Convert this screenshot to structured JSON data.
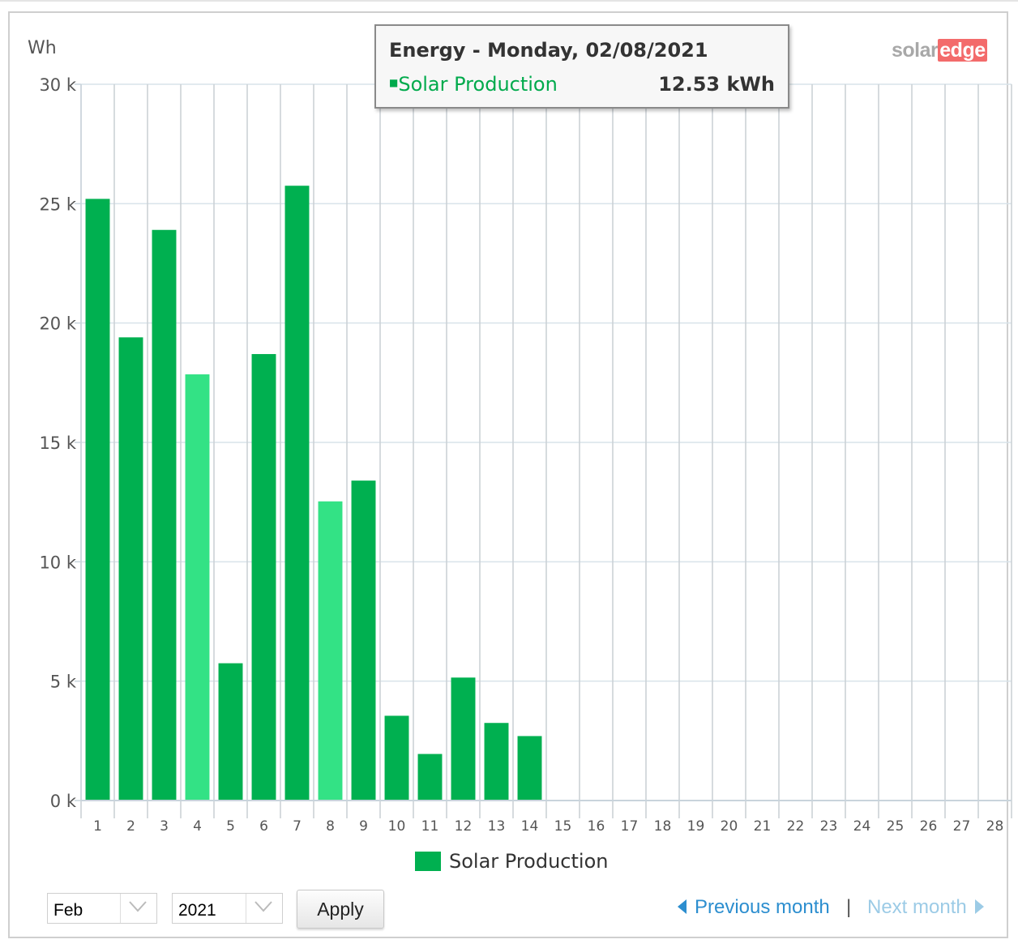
{
  "chart_data": {
    "type": "bar",
    "ylabel": "Wh",
    "ylim": [
      0,
      30000
    ],
    "yticks": [
      0,
      5000,
      10000,
      15000,
      20000,
      25000,
      30000
    ],
    "ytick_labels": [
      "0 k",
      "5 k",
      "10 k",
      "15 k",
      "20 k",
      "25 k",
      "30 k"
    ],
    "categories": [
      "1",
      "2",
      "3",
      "4",
      "5",
      "6",
      "7",
      "8",
      "9",
      "10",
      "11",
      "12",
      "13",
      "14",
      "15",
      "16",
      "17",
      "18",
      "19",
      "20",
      "21",
      "22",
      "23",
      "24",
      "25",
      "26",
      "27",
      "28"
    ],
    "series": [
      {
        "name": "Solar Production",
        "color": "#00b050",
        "highlight_color": "#33e285",
        "values": [
          25200,
          19400,
          23900,
          17850,
          5750,
          18700,
          25750,
          12530,
          13400,
          3550,
          1950,
          5150,
          3250,
          2700,
          null,
          null,
          null,
          null,
          null,
          null,
          null,
          null,
          null,
          null,
          null,
          null,
          null,
          null
        ],
        "highlighted": [
          4,
          8
        ]
      }
    ],
    "legend": "bottom-center"
  },
  "tooltip": {
    "title": "Energy - Monday, 02/08/2021",
    "series_label": "Solar Production",
    "marker": "■",
    "value": "12.53 kWh"
  },
  "logo": {
    "solar": "solar",
    "edge": "edge"
  },
  "controls": {
    "month_value": "Feb",
    "year_value": "2021",
    "apply_label": "Apply",
    "prev_label": "Previous month",
    "separator": "|",
    "next_label": "Next month"
  },
  "colors": {
    "bar": "#00b050",
    "bar_highlight": "#33e285",
    "grid": "#d9e3ea",
    "link": "#2c8ecf",
    "link_disabled": "#9ccbe6"
  }
}
